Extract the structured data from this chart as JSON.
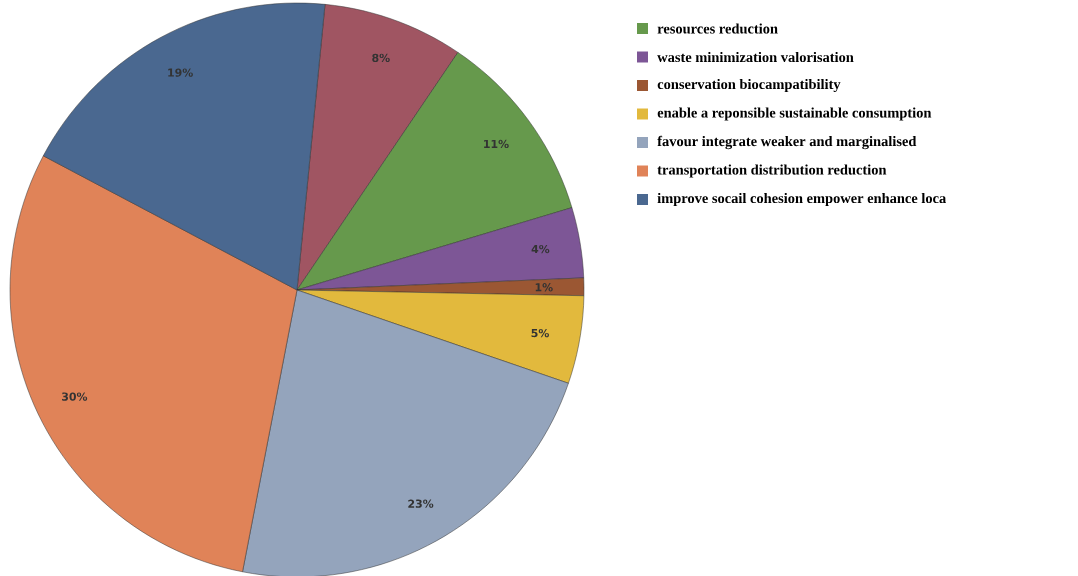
{
  "chart_data": {
    "type": "pie",
    "categories": [
      null,
      "resources reduction",
      "waste minimization valorisation",
      "conservation biocampatibility",
      "enable a reponsible sustainable consumption",
      "favour integrate weaker and marginalised",
      "transportation distribution reduction",
      "improve socail cohesion empower enhance loca"
    ],
    "values": [
      8,
      11,
      4,
      1,
      5,
      23,
      30,
      19
    ],
    "value_labels": [
      "8%",
      "11%",
      "4%",
      "1%",
      "5%",
      "23%",
      "30%",
      "19%"
    ],
    "colors": [
      "#a05562",
      "#66994c",
      "#7d5696",
      "#9b5733",
      "#e2b93d",
      "#94a4bc",
      "#e08358",
      "#4a6890"
    ],
    "legend": "top right"
  }
}
